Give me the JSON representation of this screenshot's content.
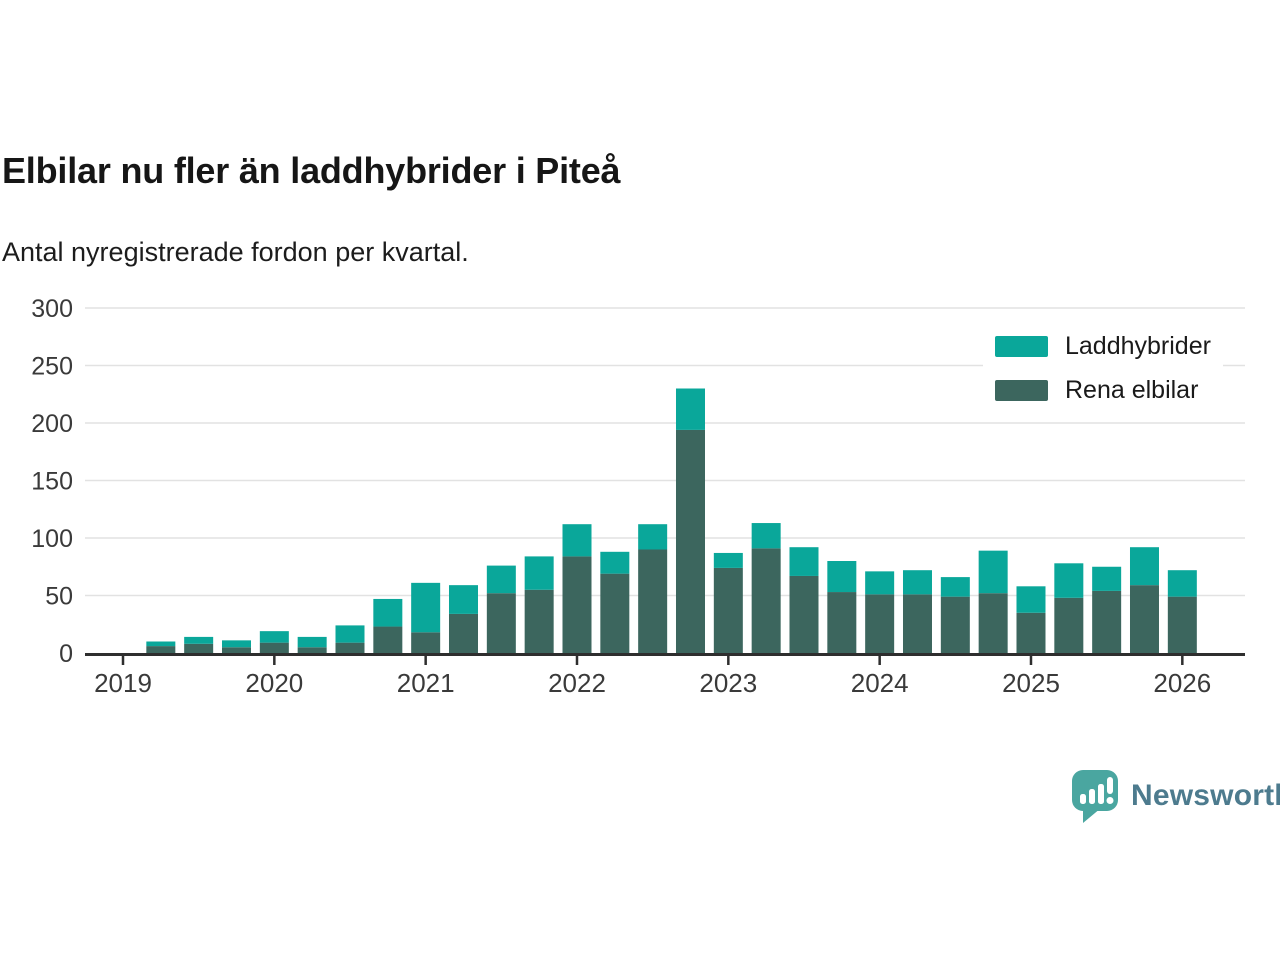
{
  "header": {
    "title": "Elbilar nu fler än laddhybrider i Piteå",
    "subtitle": "Antal nyregistrerade fordon per kvartal."
  },
  "chart_data": {
    "type": "bar",
    "stacked": true,
    "title": "Elbilar nu fler än laddhybrider i Piteå",
    "subtitle": "Antal nyregistrerade fordon per kvartal.",
    "categories": [
      "2019 K2",
      "2019 K3",
      "2019 K4",
      "2020 K1",
      "2020 K2",
      "2020 K3",
      "2020 K4",
      "2021 K1",
      "2021 K2",
      "2021 K3",
      "2021 K4",
      "2022 K1",
      "2022 K2",
      "2022 K3",
      "2022 K4",
      "2023 K1",
      "2023 K2",
      "2023 K3",
      "2023 K4",
      "2024 K1",
      "2024 K2",
      "2024 K3",
      "2024 K4",
      "2025 K1",
      "2025 K2",
      "2025 K3",
      "2025 K4",
      "2026 K1"
    ],
    "first_bar_quarter_offset": 1,
    "series": [
      {
        "name": "Laddhybrider",
        "color": "#0aa79a",
        "values": [
          4,
          6,
          6,
          10,
          9,
          15,
          24,
          43,
          25,
          24,
          29,
          28,
          19,
          22,
          36,
          13,
          22,
          25,
          27,
          20,
          21,
          17,
          37,
          23,
          30,
          21,
          33,
          23
        ]
      },
      {
        "name": "Rena elbilar",
        "color": "#3c665e",
        "values": [
          6,
          8,
          5,
          9,
          5,
          9,
          23,
          18,
          34,
          52,
          55,
          84,
          69,
          90,
          194,
          74,
          91,
          67,
          53,
          51,
          51,
          49,
          52,
          35,
          48,
          54,
          59,
          49
        ]
      }
    ],
    "x_tick_labels": [
      "2019",
      "2020",
      "2021",
      "2022",
      "2023",
      "2024",
      "2025",
      "2026"
    ],
    "y_ticks": [
      0,
      50,
      100,
      150,
      200,
      250,
      300
    ],
    "ylim": [
      0,
      300
    ],
    "grid": true,
    "legend_position": "top-right"
  },
  "legend": {
    "items": [
      {
        "label": "Laddhybrider",
        "color": "#0aa79a"
      },
      {
        "label": "Rena elbilar",
        "color": "#3c665e"
      }
    ]
  },
  "branding": {
    "logo_text": "Newsworthy",
    "logo_color": "#4aa6a0",
    "text_color": "#4d7b8e"
  }
}
